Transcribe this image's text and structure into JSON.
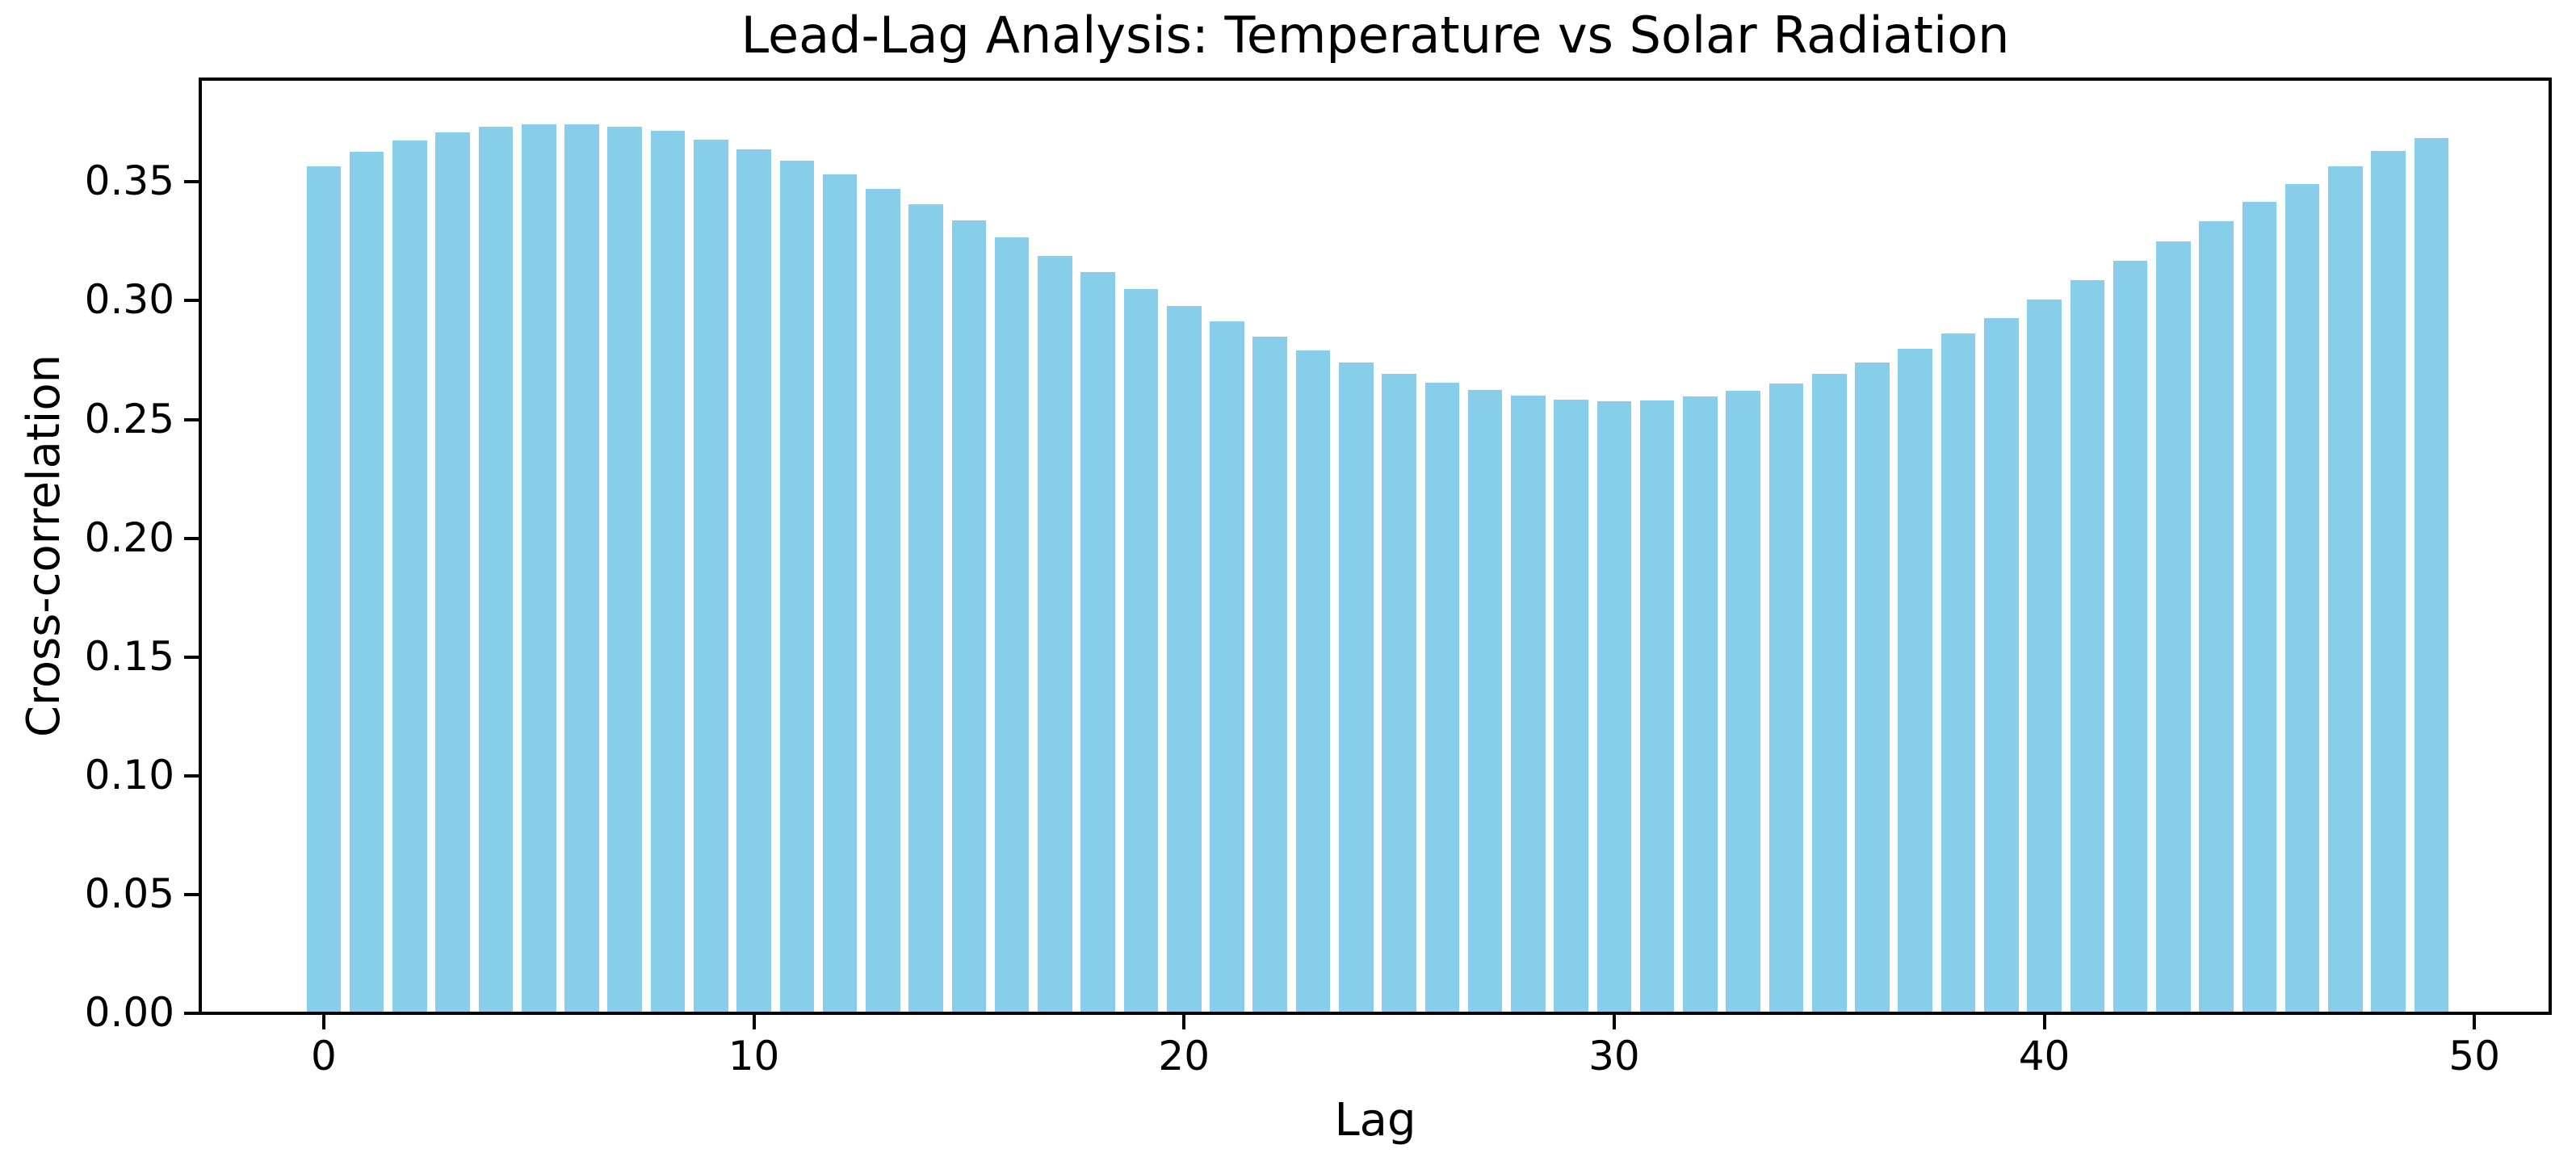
{
  "chart_data": {
    "type": "bar",
    "title": "Lead-Lag Analysis: Temperature vs Solar Radiation",
    "xlabel": "Lag",
    "ylabel": "Cross-correlation",
    "x": [
      0,
      1,
      2,
      3,
      4,
      5,
      6,
      7,
      8,
      9,
      10,
      11,
      12,
      13,
      14,
      15,
      16,
      17,
      18,
      19,
      20,
      21,
      22,
      23,
      24,
      25,
      26,
      27,
      28,
      29,
      30,
      31,
      32,
      33,
      34,
      35,
      36,
      37,
      38,
      39,
      40,
      41,
      42,
      43,
      44,
      45,
      46,
      47,
      48,
      49
    ],
    "values": [
      0.3566,
      0.3626,
      0.3673,
      0.371,
      0.3732,
      0.3743,
      0.3743,
      0.3732,
      0.3714,
      0.3679,
      0.3636,
      0.359,
      0.3531,
      0.347,
      0.3405,
      0.3338,
      0.3268,
      0.319,
      0.3119,
      0.305,
      0.2977,
      0.2912,
      0.285,
      0.2792,
      0.2739,
      0.2691,
      0.2655,
      0.2624,
      0.26,
      0.2585,
      0.2577,
      0.258,
      0.2597,
      0.262,
      0.265,
      0.2691,
      0.2741,
      0.2799,
      0.2861,
      0.2927,
      0.3004,
      0.3085,
      0.3167,
      0.3251,
      0.3335,
      0.3416,
      0.3492,
      0.3566,
      0.3629,
      0.3685
    ],
    "bar_color": "#87CEEB",
    "bar_rel_width": 0.8,
    "xlim": [
      -2.87,
      51.76
    ],
    "ylim": [
      0,
      0.3933
    ],
    "xticks": {
      "positions": [
        0,
        10,
        20,
        30,
        40,
        50
      ],
      "labels": [
        "0",
        "10",
        "20",
        "30",
        "40",
        "50"
      ]
    },
    "yticks": {
      "positions": [
        0.0,
        0.05,
        0.1,
        0.15,
        0.2,
        0.25,
        0.3,
        0.35
      ],
      "labels": [
        "0.00",
        "0.05",
        "0.10",
        "0.15",
        "0.20",
        "0.25",
        "0.30",
        "0.35"
      ]
    },
    "grid": false,
    "legend": null,
    "background_color": "#ffffff",
    "text_color": "#000000",
    "spine_color": "#000000"
  }
}
